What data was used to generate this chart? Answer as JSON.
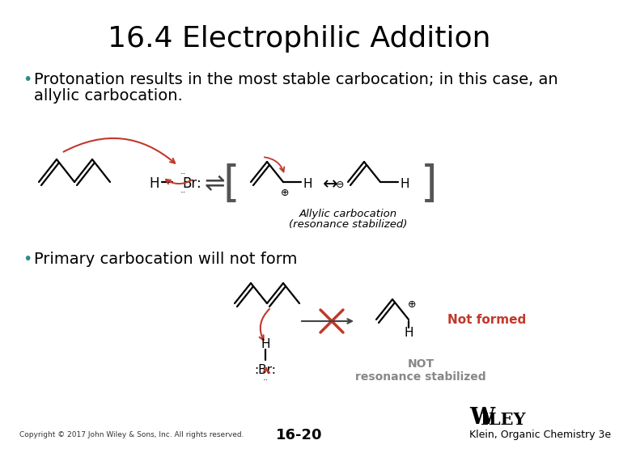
{
  "title": "16.4 Electrophilic Addition",
  "title_fontsize": 26,
  "bg_color": "#ffffff",
  "bullet1_line1": "Protonation results in the most stable carbocation; in this case, an",
  "bullet1_line2": "allylic carbocation.",
  "bullet2": "Primary carbocation will not form",
  "bullet_fontsize": 14,
  "footer_copyright": "Copyright © 2017 John Wiley & Sons, Inc. All rights reserved.",
  "footer_page": "16-20",
  "footer_publisher": "Klein, Organic Chemistry 3e",
  "footer_wiley": "WILEY",
  "red_color": "#c0392b",
  "gray_color": "#888888",
  "black_color": "#000000",
  "teal_color": "#2e8b8b"
}
